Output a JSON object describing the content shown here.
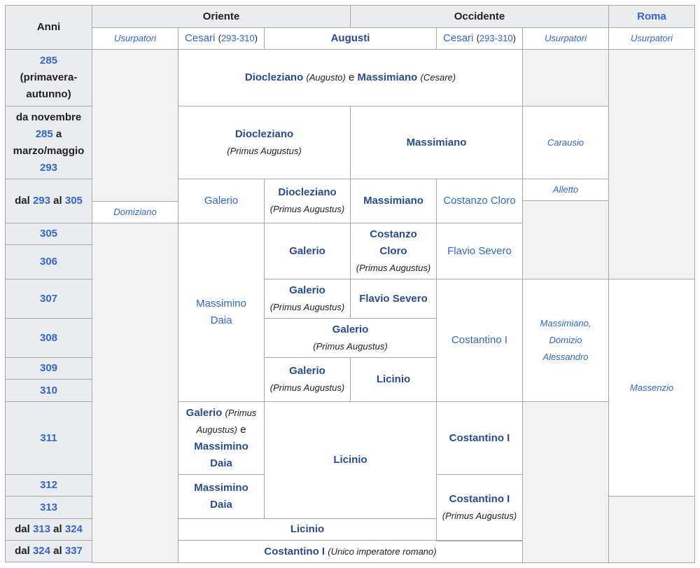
{
  "header": {
    "anni": "Anni",
    "oriente": "Oriente",
    "occidente": "Occidente",
    "roma": "Roma",
    "usurpatori": "Usurpatori",
    "cesari": "Cesari",
    "cesari_years": "293-310",
    "augusti": "Augusti"
  },
  "years": {
    "y285": "285",
    "primavera": "(primavera-",
    "autunno": "autunno)",
    "da_novembre": "da novembre",
    "a": "a",
    "marzo_maggio": "marzo/maggio",
    "y293": "293",
    "dal": "dal",
    "al": "al",
    "y305": "305",
    "y306": "306",
    "y307": "307",
    "y308": "308",
    "y309": "309",
    "y310": "310",
    "y311": "311",
    "y312": "312",
    "y313": "313",
    "y324": "324",
    "y337": "337"
  },
  "names": {
    "diocleziano": "Diocleziano",
    "massimiano": "Massimiano",
    "augusto": "(Augusto)",
    "e": "e",
    "cesare": "(Cesare)",
    "primus_augustus": "(Primus Augustus)",
    "carausio": "Carausio",
    "alletto": "Alletto",
    "domiziano": "Domiziano",
    "galerio": "Galerio",
    "costanzo_cloro": "Costanzo Cloro",
    "costanzo": "Costanzo",
    "cloro": "Cloro",
    "flavio_severo": "Flavio Severo",
    "massimino": "Massimino",
    "daia": "Daia",
    "costantino_i": "Costantino I",
    "licinio": "Licinio",
    "massimiano_comma": "Massimiano,",
    "domizio": "Domizio",
    "alessandro": "Alessandro",
    "massenzio": "Massenzio",
    "primus_open": "(Primus",
    "augustus_close": "Augustus)",
    "unico": "(Unico imperatore romano)"
  }
}
